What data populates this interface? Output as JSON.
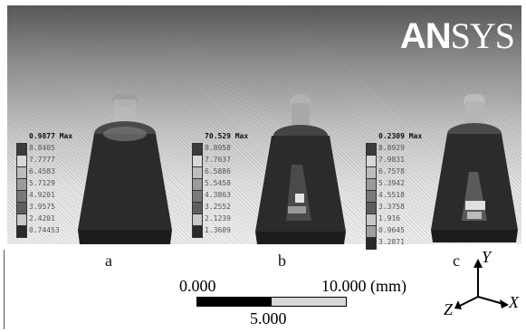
{
  "logo": {
    "part1": "AN",
    "part2": "SYS"
  },
  "panels": [
    {
      "caption": "a",
      "legend_max": "0.9877 Max",
      "legend": [
        "8.8405",
        "7.7777",
        "6.4583",
        "5.7129",
        "4.9201",
        "3.9575",
        "2.4201",
        "0.74453"
      ],
      "colors": [
        "#3a3a3a",
        "#d8d8d8",
        "#bdbdbd",
        "#9b9b9b",
        "#7a7a7a",
        "#5e5e5e",
        "#c8c8c8",
        "#2a2a2a"
      ]
    },
    {
      "caption": "b",
      "legend_max": "70.529 Max",
      "legend": [
        "8.8958",
        "7.7637",
        "6.5886",
        "5.5458",
        "4.3863",
        "3.2552",
        "2.1239",
        "1.3609"
      ],
      "colors": [
        "#3a3a3a",
        "#d8d8d8",
        "#bdbdbd",
        "#9b9b9b",
        "#7a7a7a",
        "#5e5e5e",
        "#c8c8c8",
        "#2a2a2a"
      ]
    },
    {
      "caption": "c",
      "legend_max": "0.2309 Max",
      "legend": [
        "8.8929",
        "7.9831",
        "6.7578",
        "5.3942",
        "4.5518",
        "3.3758",
        "1.916",
        "0.9645",
        "3.2871"
      ],
      "colors": [
        "#3a3a3a",
        "#d8d8d8",
        "#bdbdbd",
        "#9b9b9b",
        "#7a7a7a",
        "#5e5e5e",
        "#c8c8c8",
        "#a0a0a0",
        "#2a2a2a"
      ]
    }
  ],
  "scale": {
    "left": "0.000",
    "right": "10.000 (mm)",
    "middle": "5.000"
  },
  "triad": {
    "y": "Y",
    "x": "X",
    "z": "Z"
  }
}
